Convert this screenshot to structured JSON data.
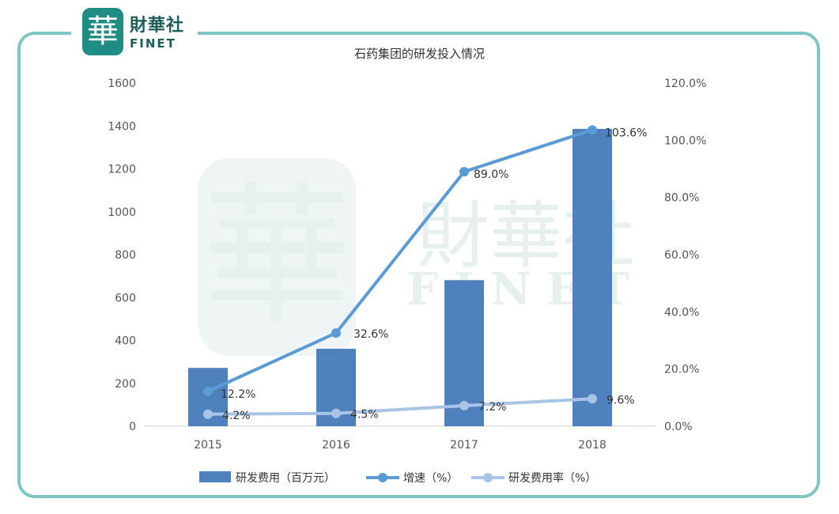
{
  "logo": {
    "badge_char": "華",
    "cn": "財華社",
    "en": "FINET"
  },
  "watermark": {
    "badge_char": "華",
    "cn": "財華社",
    "en": "FINET"
  },
  "chart_data": {
    "type": "bar",
    "title": "石药集团的研发投入情况",
    "categories": [
      "2015",
      "2016",
      "2017",
      "2018"
    ],
    "y_left": {
      "ylim": [
        0,
        1600
      ],
      "ticks": [
        "0",
        "200",
        "400",
        "600",
        "800",
        "1000",
        "1200",
        "1400",
        "1600"
      ]
    },
    "y_right": {
      "ylim": [
        0,
        120
      ],
      "ticks": [
        "0.0%",
        "20.0%",
        "40.0%",
        "60.0%",
        "80.0%",
        "100.0%",
        "120.0%"
      ]
    },
    "series": [
      {
        "name": "研发费用（百万元）",
        "type": "bar",
        "axis": "left",
        "color": "#4f81bd",
        "values": [
          272,
          361,
          681,
          1386
        ]
      },
      {
        "name": "增速（%）",
        "type": "line",
        "axis": "right",
        "color": "#5b9bd5",
        "values": [
          12.2,
          32.6,
          89.0,
          103.6
        ],
        "labels": [
          "12.2%",
          "32.6%",
          "89.0%",
          "103.6%"
        ]
      },
      {
        "name": "研发费用率（%）",
        "type": "line",
        "axis": "right",
        "color": "#a9c4e6",
        "values": [
          4.2,
          4.5,
          7.2,
          9.6
        ],
        "labels": [
          "4.2%",
          "4.5%",
          "7.2%",
          "9.6%"
        ]
      }
    ],
    "legend_position": "bottom",
    "grid": false
  }
}
